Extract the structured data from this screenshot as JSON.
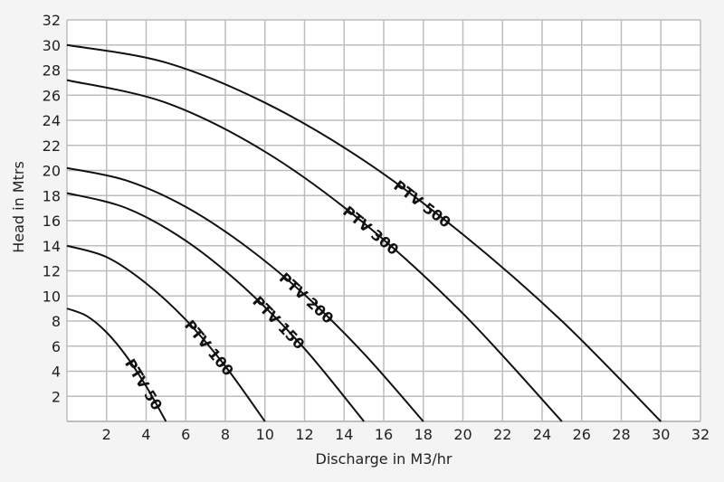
{
  "chart_data": {
    "type": "line",
    "title": "",
    "xlabel": "Discharge in M3/hr",
    "ylabel": "Head in Mtrs",
    "xlim": [
      0,
      32
    ],
    "ylim": [
      0,
      32
    ],
    "xticks": [
      2,
      4,
      6,
      8,
      10,
      12,
      14,
      16,
      18,
      20,
      22,
      24,
      26,
      28,
      30,
      32
    ],
    "yticks": [
      2,
      4,
      6,
      8,
      10,
      12,
      14,
      16,
      18,
      20,
      22,
      24,
      26,
      28,
      30,
      32
    ],
    "grid": true,
    "series": [
      {
        "name": "PTV 500",
        "x": [
          0,
          5,
          10,
          15,
          20,
          25,
          30
        ],
        "y": [
          30,
          28.6,
          25.4,
          20.8,
          14.9,
          8.0,
          0
        ]
      },
      {
        "name": "PTV 300",
        "x": [
          0,
          5,
          10,
          15,
          20,
          25
        ],
        "y": [
          27.2,
          25.4,
          21.5,
          15.8,
          8.6,
          0
        ]
      },
      {
        "name": "PTV 200",
        "x": [
          0,
          3,
          6,
          9,
          12,
          15,
          18
        ],
        "y": [
          20.2,
          19.2,
          17.1,
          14.0,
          10.1,
          5.4,
          0
        ]
      },
      {
        "name": "PTV 150",
        "x": [
          0,
          3,
          6,
          9,
          12,
          15
        ],
        "y": [
          18.2,
          17.0,
          14.4,
          10.6,
          5.8,
          0
        ]
      },
      {
        "name": "PTV 100",
        "x": [
          0,
          2,
          4,
          6,
          8,
          10
        ],
        "y": [
          14,
          13.1,
          11.0,
          8.1,
          4.4,
          0
        ]
      },
      {
        "name": "PTV 50",
        "x": [
          0,
          1,
          2,
          3,
          4,
          5
        ],
        "y": [
          9,
          8.4,
          7.1,
          5.2,
          2.8,
          0
        ]
      }
    ]
  }
}
